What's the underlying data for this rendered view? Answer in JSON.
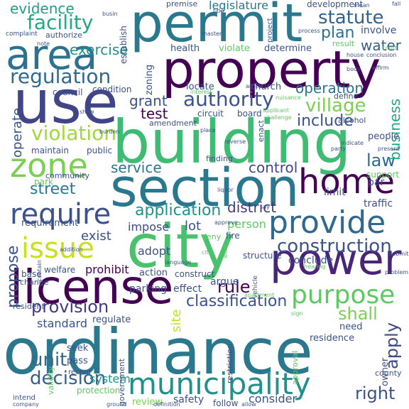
{
  "words": [
    {
      "text": "ordinance",
      "color": "#2a788e"
    },
    {
      "text": "building",
      "color": "#3fbc73"
    },
    {
      "text": "city",
      "color": "#4ac16d"
    },
    {
      "text": "use",
      "color": "#414487"
    },
    {
      "text": "permit",
      "color": "#2a788e"
    },
    {
      "text": "property",
      "color": "#440154"
    },
    {
      "text": "section",
      "color": "#2a788e"
    },
    {
      "text": "license",
      "color": "#440154"
    },
    {
      "text": "power",
      "color": "#482576"
    },
    {
      "text": "area",
      "color": "#2c728e"
    },
    {
      "text": "zone",
      "color": "#7ad151"
    },
    {
      "text": "municipality",
      "color": "#21918c"
    },
    {
      "text": "provide",
      "color": "#31688e"
    },
    {
      "text": "home",
      "color": "#440154"
    },
    {
      "text": "require",
      "color": "#3b528b"
    },
    {
      "text": "purpose",
      "color": "#5ec962"
    },
    {
      "text": "issue",
      "color": "#c8e020"
    },
    {
      "text": "construction",
      "color": "#3b528b"
    },
    {
      "text": "facility",
      "color": "#22a884"
    },
    {
      "text": "regulation",
      "color": "#31688e"
    },
    {
      "text": "authority",
      "color": "#3b528b"
    },
    {
      "text": "violation",
      "color": "#a0da39"
    },
    {
      "text": "application",
      "color": "#21918c"
    },
    {
      "text": "classification",
      "color": "#3b528b"
    },
    {
      "text": "statute",
      "color": "#33638d"
    },
    {
      "text": "provision",
      "color": "#443a83"
    },
    {
      "text": "decision",
      "color": "#355f8d"
    },
    {
      "text": "unit",
      "color": "#31688e"
    },
    {
      "text": "village",
      "color": "#7ad151"
    },
    {
      "text": "street",
      "color": "#2a788e"
    },
    {
      "text": "service",
      "color": "#2a788e"
    },
    {
      "text": "include",
      "color": "#3b528b"
    },
    {
      "text": "district",
      "color": "#443983"
    },
    {
      "text": "law",
      "color": "#31688e"
    },
    {
      "text": "control",
      "color": "#3e4989"
    },
    {
      "text": "right",
      "color": "#3b528b"
    },
    {
      "text": "rule",
      "color": "#440154"
    },
    {
      "text": "shall",
      "color": "#7ad151"
    },
    {
      "text": "apply",
      "color": "#3e4989"
    },
    {
      "text": "plan",
      "color": "#2c728e"
    },
    {
      "text": "evidence",
      "color": "#1f9e89"
    },
    {
      "text": "exercise",
      "color": "#21918c"
    },
    {
      "text": "water",
      "color": "#355f8d"
    },
    {
      "text": "business",
      "color": "#22a884"
    },
    {
      "text": "operation",
      "color": "#2c728e"
    },
    {
      "text": "test",
      "color": "#440154"
    },
    {
      "text": "grant",
      "color": "#3b528b"
    },
    {
      "text": "propose",
      "color": "#3b528b"
    },
    {
      "text": "operate",
      "color": "#3b528b"
    },
    {
      "text": "legislature",
      "color": "#2a788e"
    },
    {
      "text": "involve",
      "color": "#3b528b"
    },
    {
      "text": "exist",
      "color": "#3b528b"
    },
    {
      "text": "adopt",
      "color": "#3b528b"
    },
    {
      "text": "prohibit",
      "color": "#440154"
    },
    {
      "text": "impose",
      "color": "#3e4989"
    },
    {
      "text": "lot",
      "color": "#3b528b"
    },
    {
      "text": "person",
      "color": "#5ec962"
    },
    {
      "text": "site",
      "color": "#c2df23"
    },
    {
      "text": "parking",
      "color": "#3b528b"
    },
    {
      "text": "effect",
      "color": "#3b528b"
    },
    {
      "text": "argue",
      "color": "#3b528b"
    },
    {
      "text": "standard",
      "color": "#3b528b"
    },
    {
      "text": "system",
      "color": "#21918c"
    },
    {
      "text": "review",
      "color": "#7ad151"
    },
    {
      "text": "safety",
      "color": "#3b528b"
    },
    {
      "text": "consider",
      "color": "#3b528b"
    },
    {
      "text": "requirement",
      "color": "#3b528b"
    },
    {
      "text": "structure",
      "color": "#3b528b"
    },
    {
      "text": "conclude",
      "color": "#3b528b"
    },
    {
      "text": "limit",
      "color": "#3b528b"
    },
    {
      "text": "traffic",
      "color": "#3b528b"
    },
    {
      "text": "welfare",
      "color": "#3b528b"
    },
    {
      "text": "regulate",
      "color": "#3b528b"
    },
    {
      "text": "need",
      "color": "#3b528b"
    },
    {
      "text": "residence",
      "color": "#3b528b"
    },
    {
      "text": "owner",
      "color": "#3b528b"
    },
    {
      "text": "people",
      "color": "#3b528b"
    },
    {
      "text": "support",
      "color": "#5ec962"
    },
    {
      "text": "zoning",
      "color": "#3b528b"
    },
    {
      "text": "health",
      "color": "#3b528b"
    },
    {
      "text": "violate",
      "color": "#5ec962"
    },
    {
      "text": "determine",
      "color": "#3b528b"
    },
    {
      "text": "locate",
      "color": "#3b528b"
    },
    {
      "text": "church",
      "color": "#3b528b"
    },
    {
      "text": "condition",
      "color": "#3b528b"
    },
    {
      "text": "council",
      "color": "#3b528b"
    },
    {
      "text": "maintain",
      "color": "#3b528b"
    },
    {
      "text": "public",
      "color": "#3b528b"
    },
    {
      "text": "circuit",
      "color": "#3b528b"
    },
    {
      "text": "board",
      "color": "#3b528b"
    },
    {
      "text": "amendment",
      "color": "#3b528b"
    },
    {
      "text": "finding",
      "color": "#3b528b"
    },
    {
      "text": "community",
      "color": "#3b528b"
    },
    {
      "text": "park",
      "color": "#5ec962"
    },
    {
      "text": "par",
      "color": "#3b528b"
    },
    {
      "text": "seek",
      "color": "#3b528b"
    },
    {
      "text": "pass",
      "color": "#3b528b"
    },
    {
      "text": "record",
      "color": "#3b528b"
    },
    {
      "text": "resident",
      "color": "#3b528b"
    },
    {
      "text": "base",
      "color": "#3b528b"
    },
    {
      "text": "change",
      "color": "#3b528b"
    },
    {
      "text": "action",
      "color": "#3b528b"
    },
    {
      "text": "construct",
      "color": "#3b528b"
    },
    {
      "text": "fire",
      "color": "#3b528b"
    },
    {
      "text": "deny",
      "color": "#5ec962"
    },
    {
      "text": "premise",
      "color": "#3b528b"
    },
    {
      "text": "development",
      "color": "#3b528b"
    },
    {
      "text": "establish",
      "color": "#3b528b"
    },
    {
      "text": "result",
      "color": "#5ec962"
    },
    {
      "text": "alcohol",
      "color": "#3b528b"
    },
    {
      "text": "define",
      "color": "#3b528b"
    },
    {
      "text": "enact",
      "color": "#3b528b"
    },
    {
      "text": "protection",
      "color": "#5ec962"
    },
    {
      "text": "follow",
      "color": "#3b528b"
    },
    {
      "text": "restriction",
      "color": "#3b528b"
    },
    {
      "text": "approval",
      "color": "#5ec962"
    },
    {
      "text": "validity",
      "color": "#5ec962"
    },
    {
      "text": "county",
      "color": "#3b528b"
    },
    {
      "text": "intend",
      "color": "#3b528b"
    },
    {
      "text": "government",
      "color": "#3b528b"
    },
    {
      "text": "authorize",
      "color": "#3b528b"
    },
    {
      "text": "complaint",
      "color": "#3b528b"
    },
    {
      "text": "project",
      "color": "#3b528b"
    },
    {
      "text": "master",
      "color": "#3b528b"
    },
    {
      "text": "process",
      "color": "#3b528b"
    },
    {
      "text": "conclusion",
      "color": "#3b528b"
    },
    {
      "text": "affirm",
      "color": "#3b528b"
    },
    {
      "text": "house",
      "color": "#3b528b"
    },
    {
      "text": "body",
      "color": "#3b528b"
    },
    {
      "text": "interest",
      "color": "#5ec962"
    },
    {
      "text": "article",
      "color": "#3b528b"
    },
    {
      "text": "applicant",
      "color": "#5ec962"
    },
    {
      "text": "challenge",
      "color": "#5ec962"
    },
    {
      "text": "place",
      "color": "#3b528b"
    },
    {
      "text": "reverse",
      "color": "#3b528b"
    },
    {
      "text": "liquor",
      "color": "#3b528b"
    },
    {
      "text": "say",
      "color": "#3b528b"
    },
    {
      "text": "word",
      "color": "#5ec962"
    },
    {
      "text": "cite",
      "color": "#5ec962"
    },
    {
      "text": "language",
      "color": "#3b528b"
    },
    {
      "text": "hearing",
      "color": "#5ec962"
    },
    {
      "text": "submit",
      "color": "#3b528b"
    },
    {
      "text": "problem",
      "color": "#3b528b"
    },
    {
      "text": "vehicle",
      "color": "#3b528b"
    },
    {
      "text": "apartment",
      "color": "#5ec962"
    },
    {
      "text": "sign",
      "color": "#5ec962"
    },
    {
      "text": "addition",
      "color": "#3b528b"
    },
    {
      "text": "contain",
      "color": "#3b528b"
    },
    {
      "text": "note",
      "color": "#3b528b"
    },
    {
      "text": "show",
      "color": "#3b528b"
    },
    {
      "text": "burden",
      "color": "#3b528b"
    },
    {
      "text": "company",
      "color": "#3b528b"
    },
    {
      "text": "definition",
      "color": "#3b528b"
    },
    {
      "text": "ground",
      "color": "#3b528b"
    },
    {
      "text": "allow",
      "color": "#3b528b"
    },
    {
      "text": "party",
      "color": "#3b528b"
    },
    {
      "text": "present",
      "color": "#3b528b"
    },
    {
      "text": "indicate",
      "color": "#3b528b"
    },
    {
      "text": "approve",
      "color": "#3b528b"
    },
    {
      "text": "nuisance",
      "color": "#5ec962"
    },
    {
      "text": "court",
      "color": "#5ec962"
    },
    {
      "text": "busin",
      "color": "#3b528b"
    },
    {
      "text": "title",
      "color": "#3b528b"
    },
    {
      "text": "fall",
      "color": "#3b528b"
    },
    {
      "text": "mean",
      "color": "#3b528b"
    }
  ]
}
